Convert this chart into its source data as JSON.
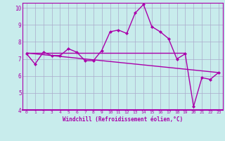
{
  "xlabel": "Windchill (Refroidissement éolien,°C)",
  "background_color": "#c8ecec",
  "line_color": "#aa00aa",
  "grid_color": "#aaaacc",
  "xlim": [
    -0.5,
    23.5
  ],
  "ylim": [
    4,
    10.3
  ],
  "yticks": [
    4,
    5,
    6,
    7,
    8,
    9,
    10
  ],
  "xticks": [
    0,
    1,
    2,
    3,
    4,
    5,
    6,
    7,
    8,
    9,
    10,
    11,
    12,
    13,
    14,
    15,
    16,
    17,
    18,
    19,
    20,
    21,
    22,
    23
  ],
  "hours": [
    0,
    1,
    2,
    3,
    4,
    5,
    6,
    7,
    8,
    9,
    10,
    11,
    12,
    13,
    14,
    15,
    16,
    17,
    18,
    19,
    20,
    21,
    22,
    23
  ],
  "temp": [
    7.3,
    6.7,
    7.4,
    7.2,
    7.2,
    7.6,
    7.4,
    6.9,
    6.9,
    7.5,
    8.6,
    8.7,
    8.5,
    9.7,
    10.2,
    8.9,
    8.6,
    8.2,
    7.0,
    7.3,
    4.2,
    5.9,
    5.8,
    6.2
  ],
  "trend_start": 7.35,
  "trend_end": 6.2,
  "flat_val": 7.35,
  "flat_end": 19
}
